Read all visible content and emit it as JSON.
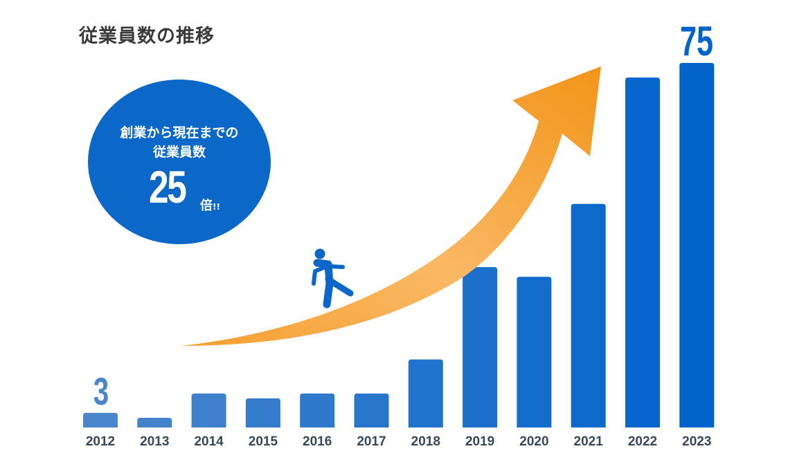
{
  "title": "従業員数の推移",
  "callout": {
    "line1": "創業から現在までの",
    "line2": "従業員数",
    "multiplier": "25",
    "unit": "倍",
    "exclaim": "!!"
  },
  "labels": {
    "first_value": "3",
    "last_value": "75"
  },
  "colors": {
    "bar_light": "#4a86cc",
    "bar_dark": "#0063cc",
    "arrow_start": "#f5a84a",
    "arrow_end": "#f29418",
    "circle": "#0b67c8",
    "title_text": "#3a3a3a",
    "axis_text": "#3b4754"
  },
  "chart_data": {
    "type": "bar",
    "title": "従業員数の推移",
    "xlabel": "",
    "ylabel": "",
    "categories": [
      "2012",
      "2013",
      "2014",
      "2015",
      "2016",
      "2017",
      "2018",
      "2019",
      "2020",
      "2021",
      "2022",
      "2023"
    ],
    "values": [
      3,
      2,
      7,
      6,
      7,
      7,
      14,
      33,
      31,
      46,
      72,
      75
    ],
    "data_labels": {
      "2012": "3",
      "2023": "75"
    },
    "ylim": [
      0,
      75
    ],
    "grid": false,
    "legend": "none",
    "annotations": [
      "創業から現在までの従業員数 25倍!!",
      "rising orange arrow with walking person icon"
    ]
  }
}
